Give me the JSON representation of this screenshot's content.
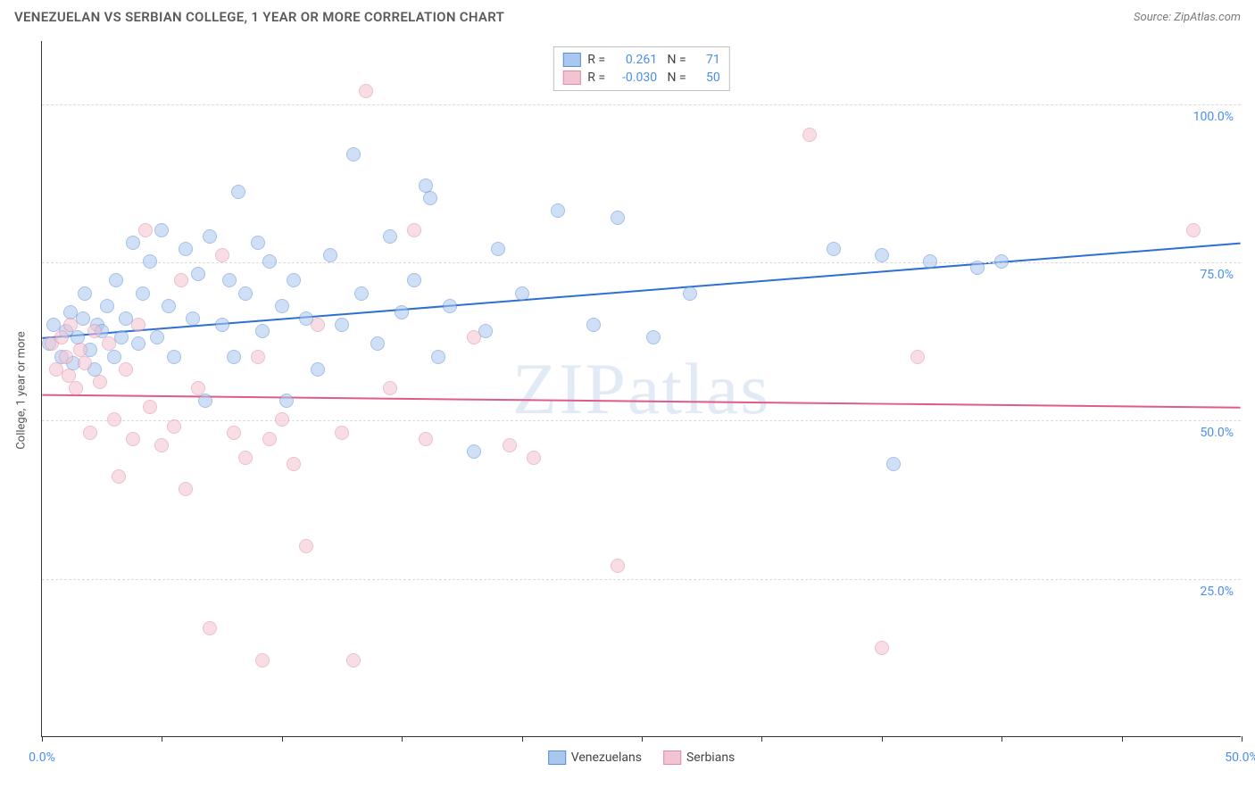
{
  "header": {
    "title": "VENEZUELAN VS SERBIAN COLLEGE, 1 YEAR OR MORE CORRELATION CHART",
    "source": "Source: ZipAtlas.com"
  },
  "chart": {
    "type": "scatter",
    "ylabel": "College, 1 year or more",
    "watermark": "ZIPatlas",
    "background_color": "#ffffff",
    "grid_color": "#dcdcdc",
    "axis_color": "#333333",
    "tick_label_color": "#4a8ff0",
    "xlim": [
      0,
      50
    ],
    "ylim": [
      0,
      110
    ],
    "x_ticks": [
      0,
      5,
      10,
      15,
      20,
      25,
      30,
      35,
      40,
      45,
      50
    ],
    "x_tick_labels": {
      "0": "0.0%",
      "50": "50.0%"
    },
    "y_gridlines": [
      25,
      50,
      75,
      100
    ],
    "y_tick_labels": {
      "25": "25.0%",
      "50": "50.0%",
      "75": "75.0%",
      "100": "100.0%"
    },
    "marker_radius": 8,
    "marker_opacity": 0.55,
    "series": [
      {
        "name": "Venezuelans",
        "fill": "#a9c8f0",
        "stroke": "#5b8dd6",
        "trend_color": "#2e6fd6",
        "trend_width": 2,
        "trend": {
          "y_at_x0": 63,
          "y_at_xmax": 78
        },
        "R": "0.261",
        "N": "71",
        "points": [
          [
            0.3,
            62
          ],
          [
            0.5,
            65
          ],
          [
            0.8,
            60
          ],
          [
            1.0,
            64
          ],
          [
            1.2,
            67
          ],
          [
            1.3,
            59
          ],
          [
            1.5,
            63
          ],
          [
            1.7,
            66
          ],
          [
            1.8,
            70
          ],
          [
            2.0,
            61
          ],
          [
            2.2,
            58
          ],
          [
            2.3,
            65
          ],
          [
            2.5,
            64
          ],
          [
            2.7,
            68
          ],
          [
            3.0,
            60
          ],
          [
            3.1,
            72
          ],
          [
            3.3,
            63
          ],
          [
            3.5,
            66
          ],
          [
            3.8,
            78
          ],
          [
            4.0,
            62
          ],
          [
            4.2,
            70
          ],
          [
            4.5,
            75
          ],
          [
            4.8,
            63
          ],
          [
            5.0,
            80
          ],
          [
            5.3,
            68
          ],
          [
            5.5,
            60
          ],
          [
            6.0,
            77
          ],
          [
            6.3,
            66
          ],
          [
            6.5,
            73
          ],
          [
            6.8,
            53
          ],
          [
            7.0,
            79
          ],
          [
            7.5,
            65
          ],
          [
            7.8,
            72
          ],
          [
            8.0,
            60
          ],
          [
            8.2,
            86
          ],
          [
            8.5,
            70
          ],
          [
            9.0,
            78
          ],
          [
            9.2,
            64
          ],
          [
            9.5,
            75
          ],
          [
            10.0,
            68
          ],
          [
            10.2,
            53
          ],
          [
            10.5,
            72
          ],
          [
            11.0,
            66
          ],
          [
            11.5,
            58
          ],
          [
            12.0,
            76
          ],
          [
            12.5,
            65
          ],
          [
            13.0,
            92
          ],
          [
            13.3,
            70
          ],
          [
            14.0,
            62
          ],
          [
            14.5,
            79
          ],
          [
            15.0,
            67
          ],
          [
            15.5,
            72
          ],
          [
            16.0,
            87
          ],
          [
            16.2,
            85
          ],
          [
            16.5,
            60
          ],
          [
            17.0,
            68
          ],
          [
            18.0,
            45
          ],
          [
            18.5,
            64
          ],
          [
            19.0,
            77
          ],
          [
            20.0,
            70
          ],
          [
            21.5,
            83
          ],
          [
            23.0,
            65
          ],
          [
            24.0,
            82
          ],
          [
            25.5,
            63
          ],
          [
            27.0,
            70
          ],
          [
            33.0,
            77
          ],
          [
            35.0,
            76
          ],
          [
            35.5,
            43
          ],
          [
            37.0,
            75
          ],
          [
            39.0,
            74
          ],
          [
            40.0,
            75
          ]
        ]
      },
      {
        "name": "Serbians",
        "fill": "#f4c3d1",
        "stroke": "#e28aa5",
        "trend_color": "#e05b8a",
        "trend_width": 2,
        "trend": {
          "y_at_x0": 54,
          "y_at_xmax": 52
        },
        "R": "-0.030",
        "N": "50",
        "points": [
          [
            0.4,
            62
          ],
          [
            0.6,
            58
          ],
          [
            0.8,
            63
          ],
          [
            1.0,
            60
          ],
          [
            1.2,
            65
          ],
          [
            1.4,
            55
          ],
          [
            1.6,
            61
          ],
          [
            1.8,
            59
          ],
          [
            2.0,
            48
          ],
          [
            2.2,
            64
          ],
          [
            2.4,
            56
          ],
          [
            2.8,
            62
          ],
          [
            3.0,
            50
          ],
          [
            3.2,
            41
          ],
          [
            3.5,
            58
          ],
          [
            3.8,
            47
          ],
          [
            4.0,
            65
          ],
          [
            4.3,
            80
          ],
          [
            4.5,
            52
          ],
          [
            5.0,
            46
          ],
          [
            5.5,
            49
          ],
          [
            5.8,
            72
          ],
          [
            6.0,
            39
          ],
          [
            6.5,
            55
          ],
          [
            7.0,
            17
          ],
          [
            7.5,
            76
          ],
          [
            8.0,
            48
          ],
          [
            8.5,
            44
          ],
          [
            9.0,
            60
          ],
          [
            9.2,
            12
          ],
          [
            9.5,
            47
          ],
          [
            10.0,
            50
          ],
          [
            10.5,
            43
          ],
          [
            11.0,
            30
          ],
          [
            11.5,
            65
          ],
          [
            12.5,
            48
          ],
          [
            13.0,
            12
          ],
          [
            13.5,
            102
          ],
          [
            14.5,
            55
          ],
          [
            15.5,
            80
          ],
          [
            16.0,
            47
          ],
          [
            18.0,
            63
          ],
          [
            19.5,
            46
          ],
          [
            20.5,
            44
          ],
          [
            24.0,
            27
          ],
          [
            32.0,
            95
          ],
          [
            35.0,
            14
          ],
          [
            36.5,
            60
          ],
          [
            48.0,
            80
          ],
          [
            1.1,
            57
          ]
        ]
      }
    ],
    "legend_bottom": [
      {
        "label": "Venezuelans",
        "fill": "#a9c8f0",
        "stroke": "#5b8dd6"
      },
      {
        "label": "Serbians",
        "fill": "#f4c3d1",
        "stroke": "#e28aa5"
      }
    ]
  }
}
